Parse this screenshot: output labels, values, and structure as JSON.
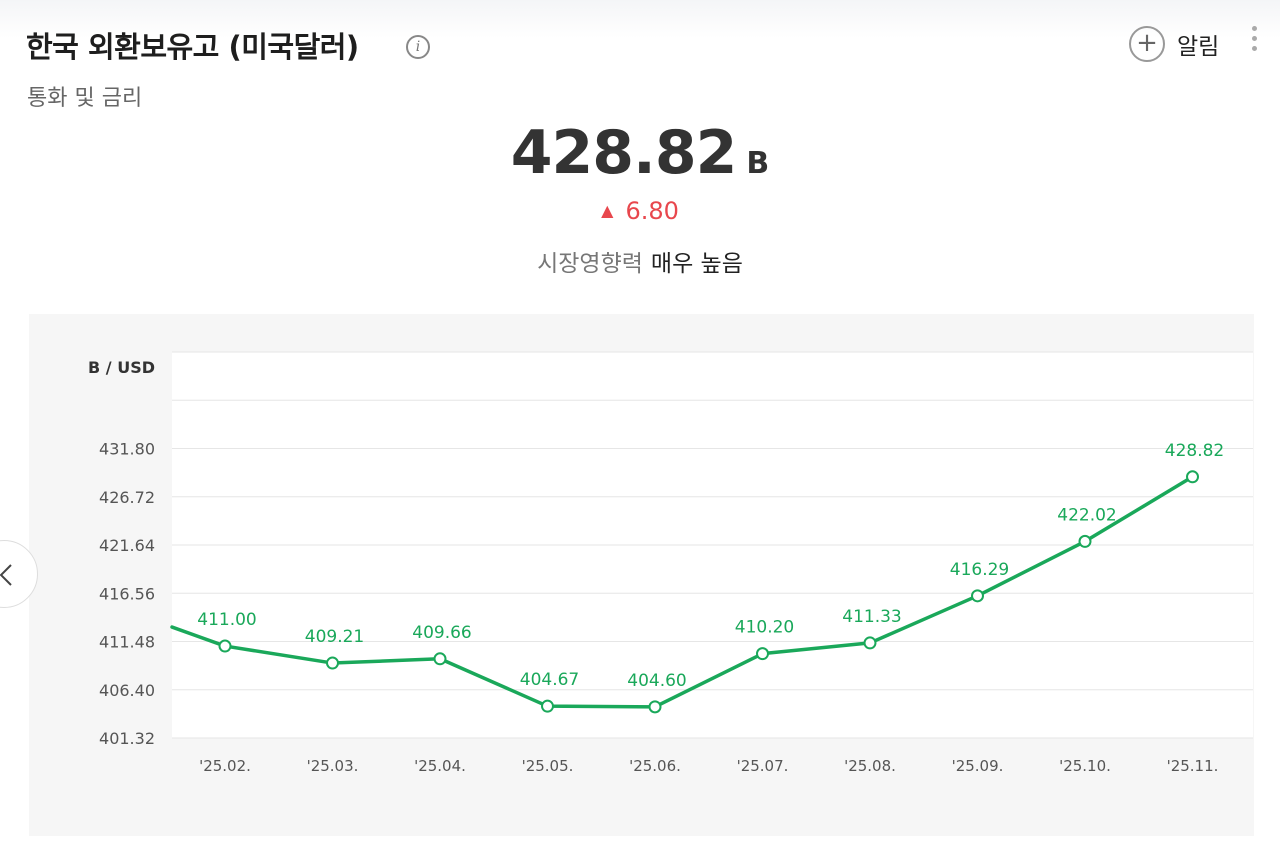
{
  "header": {
    "title": "한국 외환보유고 (미국달러)",
    "subtitle": "통화 및 금리",
    "alarm_label": "알림"
  },
  "summary": {
    "value": "428.82",
    "unit": "B",
    "change": "6.80",
    "impact_label": "시장영향력",
    "impact_value": "매우 높음"
  },
  "colors": {
    "line": "#1aa85a",
    "up": "#e8474d"
  },
  "icons": {
    "info": "info-icon",
    "add": "plus-circle-icon",
    "more": "more-vertical-icon",
    "prev": "chevron-left-icon"
  },
  "chart_data": {
    "type": "line",
    "unit_label": "B / USD",
    "categories": [
      "'25.02.",
      "'25.03.",
      "'25.04.",
      "'25.05.",
      "'25.06.",
      "'25.07.",
      "'25.08.",
      "'25.09.",
      "'25.10.",
      "'25.11."
    ],
    "values": [
      411.0,
      409.21,
      409.66,
      404.67,
      404.6,
      410.2,
      411.33,
      416.29,
      422.02,
      428.82
    ],
    "labels": [
      "411.00",
      "409.21",
      "409.66",
      "404.67",
      "404.60",
      "410.20",
      "411.33",
      "416.29",
      "422.02",
      "428.82"
    ],
    "lead_in_value": 413.0,
    "y_ticks": [
      "401.32",
      "406.40",
      "411.48",
      "416.56",
      "421.64",
      "426.72",
      "431.80"
    ],
    "ylim": [
      401.32,
      441.96
    ],
    "grid": true
  }
}
